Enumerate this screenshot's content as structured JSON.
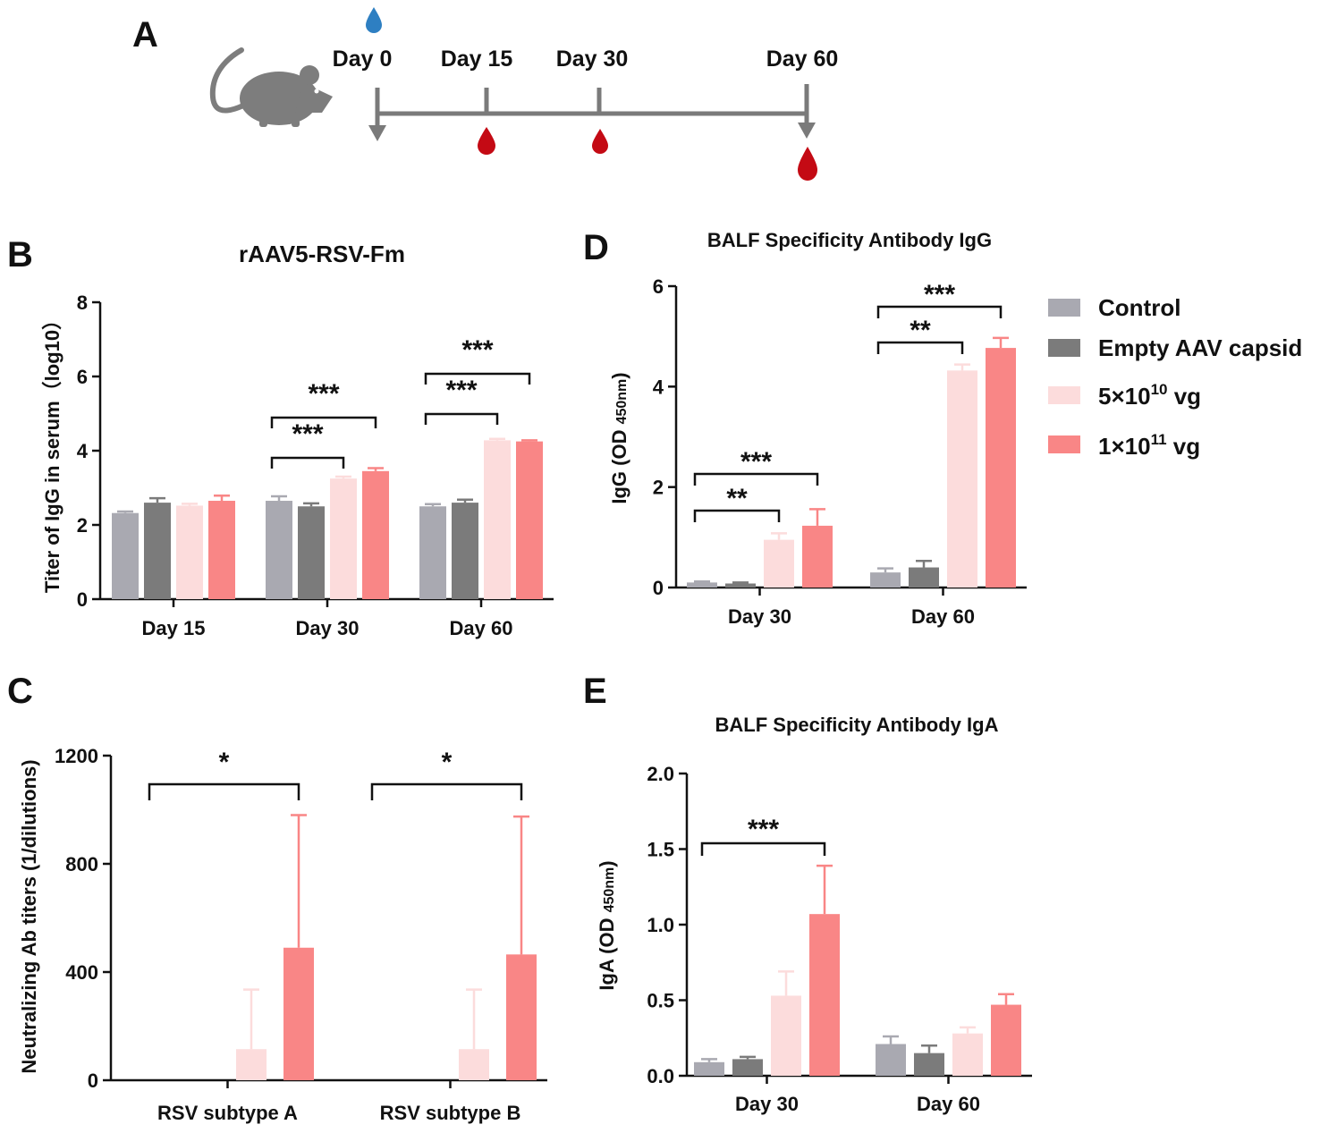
{
  "timeline": {
    "panel": "A",
    "days": [
      "Day 0",
      "Day 15",
      "Day 30",
      "Day 60"
    ],
    "colors": {
      "axis": "#7a7a7a",
      "mouse": "#7d7d7d",
      "immunization_drop": "#2e7fc2",
      "blood_drop": "#c40a14"
    }
  },
  "legend": [
    {
      "label": "Control",
      "color": "#a9a9b1"
    },
    {
      "label": "Empty AAV capsid",
      "color": "#7b7b7b"
    },
    {
      "label_prefix": "5×10",
      "label_exp": "10",
      "label_suffix": " vg",
      "color": "#fcdcdc"
    },
    {
      "label_prefix": "1×10",
      "label_exp": "11",
      "label_suffix": " vg",
      "color": "#f98686"
    }
  ],
  "chart_data": [
    {
      "panel": "B",
      "type": "bar",
      "title": "rAAV5-RSV-Fm",
      "ylabel": "Titer of IgG in serum（log10）",
      "categories": [
        "Day 15",
        "Day 30",
        "Day 60"
      ],
      "ylim": [
        0,
        8
      ],
      "yticks": [
        "0",
        "2",
        "4",
        "6",
        "8"
      ],
      "series": [
        {
          "name": "Control",
          "values": [
            2.32,
            2.65,
            2.5
          ],
          "errors": [
            0.04,
            0.12,
            0.06
          ]
        },
        {
          "name": "Empty AAV capsid",
          "values": [
            2.6,
            2.5,
            2.6
          ],
          "errors": [
            0.12,
            0.08,
            0.08
          ]
        },
        {
          "name": "5×10^10 vg",
          "values": [
            2.52,
            3.25,
            4.28
          ],
          "errors": [
            0.05,
            0.05,
            0.04
          ]
        },
        {
          "name": "1×10^11 vg",
          "values": [
            2.65,
            3.45,
            4.25
          ],
          "errors": [
            0.14,
            0.08,
            0.03
          ]
        }
      ],
      "annotations": [
        {
          "group": 1,
          "from": 0,
          "to": 2,
          "label": "***"
        },
        {
          "group": 1,
          "from": 0,
          "to": 3,
          "label": "***"
        },
        {
          "group": 2,
          "from": 0,
          "to": 2,
          "label": "***"
        },
        {
          "group": 2,
          "from": 0,
          "to": 3,
          "label": "***"
        }
      ]
    },
    {
      "panel": "C",
      "type": "bar",
      "title": "",
      "ylabel": "Neutralizing Ab titers (1/dilutions)",
      "categories": [
        "RSV subtype A",
        "RSV subtype B"
      ],
      "ylim": [
        0,
        1200
      ],
      "yticks": [
        "0",
        "400",
        "800",
        "1200"
      ],
      "series": [
        {
          "name": "Control",
          "values": [
            0,
            0
          ],
          "errors": [
            0,
            0
          ]
        },
        {
          "name": "Empty AAV capsid",
          "values": [
            0,
            0
          ],
          "errors": [
            0,
            0
          ]
        },
        {
          "name": "5×10^10 vg",
          "values": [
            115,
            115
          ],
          "errors": [
            220,
            220
          ]
        },
        {
          "name": "1×10^11 vg",
          "values": [
            490,
            465
          ],
          "errors": [
            490,
            510
          ]
        }
      ],
      "annotations": [
        {
          "group": 0,
          "from": 0,
          "to": 3,
          "label": "*"
        },
        {
          "group": 1,
          "from": 0,
          "to": 3,
          "label": "*"
        }
      ]
    },
    {
      "panel": "D",
      "type": "bar",
      "title": "BALF Specificity Antibody IgG",
      "ylabel_main": "IgG (OD ",
      "ylabel_sub": "450nm",
      "ylabel_end": ")",
      "categories": [
        "Day 30",
        "Day 60"
      ],
      "ylim": [
        0,
        6
      ],
      "yticks": [
        "0",
        "2",
        "4",
        "6"
      ],
      "series": [
        {
          "name": "Control",
          "values": [
            0.1,
            0.3
          ],
          "errors": [
            0.02,
            0.08
          ]
        },
        {
          "name": "Empty AAV capsid",
          "values": [
            0.08,
            0.4
          ],
          "errors": [
            0.02,
            0.13
          ]
        },
        {
          "name": "5×10^10 vg",
          "values": [
            0.95,
            4.32
          ],
          "errors": [
            0.13,
            0.12
          ]
        },
        {
          "name": "1×10^11 vg",
          "values": [
            1.23,
            4.77
          ],
          "errors": [
            0.33,
            0.2
          ]
        }
      ],
      "annotations": [
        {
          "group": 0,
          "from": 0,
          "to": 2,
          "label": "**"
        },
        {
          "group": 0,
          "from": 0,
          "to": 3,
          "label": "***"
        },
        {
          "group": 1,
          "from": 0,
          "to": 2,
          "label": "**"
        },
        {
          "group": 1,
          "from": 0,
          "to": 3,
          "label": "***"
        }
      ]
    },
    {
      "panel": "E",
      "type": "bar",
      "title": "BALF Specificity Antibody IgA",
      "ylabel_main": "IgA (OD ",
      "ylabel_sub": "450nm",
      "ylabel_end": ")",
      "categories": [
        "Day 30",
        "Day 60"
      ],
      "ylim": [
        0,
        2.0
      ],
      "yticks": [
        "0.0",
        "0.5",
        "1.0",
        "1.5",
        "2.0"
      ],
      "series": [
        {
          "name": "Control",
          "values": [
            0.09,
            0.21
          ],
          "errors": [
            0.02,
            0.05
          ]
        },
        {
          "name": "Empty AAV capsid",
          "values": [
            0.11,
            0.15
          ],
          "errors": [
            0.015,
            0.05
          ]
        },
        {
          "name": "5×10^10 vg",
          "values": [
            0.53,
            0.28
          ],
          "errors": [
            0.16,
            0.04
          ]
        },
        {
          "name": "1×10^11 vg",
          "values": [
            1.07,
            0.47
          ],
          "errors": [
            0.32,
            0.07
          ]
        }
      ],
      "annotations": [
        {
          "group": 0,
          "from": 0,
          "to": 3,
          "label": "***"
        }
      ]
    }
  ]
}
